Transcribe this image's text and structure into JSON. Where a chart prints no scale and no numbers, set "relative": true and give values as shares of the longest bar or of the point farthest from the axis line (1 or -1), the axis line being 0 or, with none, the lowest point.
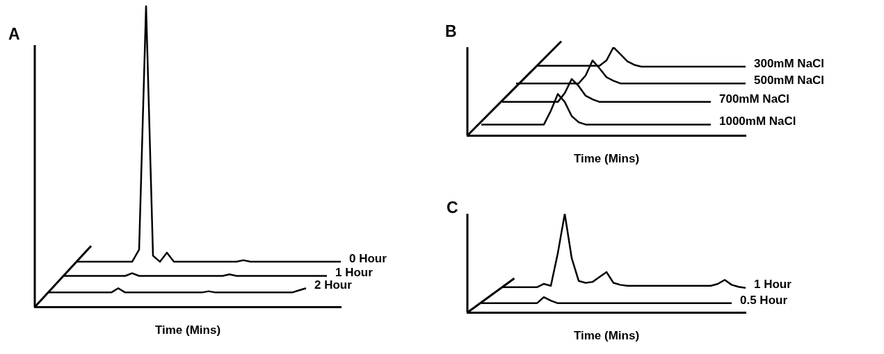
{
  "chart_data": [
    {
      "type": "line",
      "title": "A",
      "xlabel": "Time (Mins)",
      "relative": true,
      "marker": "none",
      "categories": [
        null,
        null,
        null,
        null,
        null,
        null,
        null,
        null,
        null,
        null,
        null,
        null,
        null,
        null,
        null,
        null,
        null,
        null,
        null,
        null,
        null,
        null,
        null,
        null,
        null,
        null,
        null,
        null,
        null,
        null,
        null,
        null,
        null,
        null,
        null,
        null,
        null,
        null,
        null,
        null,
        null,
        null,
        null,
        null,
        null
      ],
      "series": [
        {
          "name": "0 Hour",
          "color": "#000000",
          "values": [
            null,
            null,
            null,
            null,
            null,
            null,
            0.15,
            0.15,
            0.15,
            0.15,
            0.15,
            0.15,
            0.15,
            0.15,
            0.15,
            0.19,
            1,
            0.17,
            0.15,
            0.18,
            0.15,
            0.15,
            0.15,
            0.15,
            0.15,
            0.15,
            0.15,
            0.15,
            0.15,
            0.15,
            0.155,
            0.15,
            0.15,
            0.15,
            0.15,
            0.15,
            0.15,
            0.15,
            0.15,
            0.15,
            0.15,
            0.15,
            0.15,
            0.15,
            0.15
          ]
        },
        {
          "name": "1 Hour",
          "color": "#000000",
          "values": [
            null,
            null,
            null,
            null,
            0.103,
            0.103,
            0.103,
            0.103,
            0.103,
            0.103,
            0.103,
            0.103,
            0.103,
            0.103,
            0.112,
            0.103,
            0.103,
            0.103,
            0.103,
            0.103,
            0.103,
            0.103,
            0.103,
            0.103,
            0.103,
            0.103,
            0.103,
            0.103,
            0.108,
            0.103,
            0.103,
            0.103,
            0.103,
            0.103,
            0.103,
            0.103,
            0.103,
            0.103,
            0.103,
            0.103,
            0.103,
            0.103,
            0.103,
            null,
            null
          ]
        },
        {
          "name": "2 Hour",
          "color": "#000000",
          "values": [
            null,
            null,
            0.048,
            0.048,
            0.048,
            0.048,
            0.048,
            0.048,
            0.048,
            0.048,
            0.048,
            0.048,
            0.062,
            0.048,
            0.048,
            0.048,
            0.048,
            0.048,
            0.048,
            0.048,
            0.048,
            0.048,
            0.048,
            0.048,
            0.048,
            0.052,
            0.048,
            0.048,
            0.048,
            0.048,
            0.048,
            0.048,
            0.048,
            0.048,
            0.048,
            0.048,
            0.048,
            0.048,
            0.055,
            0.062,
            null,
            null,
            null,
            null,
            null
          ]
        }
      ]
    },
    {
      "type": "line",
      "title": "B",
      "xlabel": "Time (Mins)",
      "relative": true,
      "marker": "none",
      "categories": [
        null,
        null,
        null,
        null,
        null,
        null,
        null,
        null,
        null,
        null,
        null,
        null,
        null,
        null,
        null,
        null,
        null,
        null,
        null,
        null,
        null,
        null,
        null,
        null,
        null,
        null,
        null,
        null,
        null,
        null,
        null,
        null,
        null,
        null,
        null,
        null,
        null,
        null,
        null,
        null,
        null
      ],
      "series": [
        {
          "name": "300mM NaCl",
          "color": "#000000",
          "values": [
            null,
            null,
            null,
            null,
            null,
            null,
            null,
            null,
            null,
            null,
            0.79,
            0.79,
            0.79,
            0.79,
            0.79,
            0.79,
            0.79,
            0.79,
            0.79,
            0.79,
            0.85,
            1,
            0.92,
            0.84,
            0.8,
            0.78,
            0.78,
            0.78,
            0.78,
            0.78,
            0.78,
            0.78,
            0.78,
            0.78,
            0.78,
            0.78,
            0.78,
            0.78,
            0.78,
            0.78,
            0.78
          ]
        },
        {
          "name": "500mM NaCl",
          "color": "#000000",
          "values": [
            null,
            null,
            null,
            null,
            null,
            null,
            null,
            0.59,
            0.59,
            0.59,
            0.59,
            0.59,
            0.59,
            0.59,
            0.59,
            0.59,
            0.59,
            0.68,
            0.85,
            0.76,
            0.66,
            0.62,
            0.59,
            0.59,
            0.59,
            0.59,
            0.59,
            0.59,
            0.59,
            0.59,
            0.59,
            0.59,
            0.59,
            0.59,
            0.59,
            0.59,
            0.59,
            0.59,
            0.59,
            0.59,
            0.59
          ]
        },
        {
          "name": "700mM NaCl",
          "color": "#000000",
          "values": [
            null,
            null,
            null,
            null,
            null,
            0.38,
            0.38,
            0.38,
            0.38,
            0.38,
            0.38,
            0.38,
            0.38,
            0.38,
            0.48,
            0.64,
            0.56,
            0.45,
            0.41,
            0.38,
            0.38,
            0.38,
            0.38,
            0.38,
            0.38,
            0.38,
            0.38,
            0.38,
            0.38,
            0.38,
            0.38,
            0.38,
            0.38,
            0.38,
            0.38,
            0.38,
            null,
            null,
            null,
            null,
            null
          ]
        },
        {
          "name": "1000mM NaCl",
          "color": "#000000",
          "values": [
            null,
            null,
            0.124,
            0.124,
            0.124,
            0.124,
            0.124,
            0.124,
            0.124,
            0.124,
            0.124,
            0.124,
            0.28,
            0.47,
            0.38,
            0.22,
            0.15,
            0.124,
            0.124,
            0.124,
            0.124,
            0.124,
            0.124,
            0.124,
            0.124,
            0.124,
            0.124,
            0.124,
            0.124,
            0.124,
            0.124,
            0.124,
            0.124,
            0.124,
            0.124,
            0.124,
            null,
            null,
            null,
            null,
            null
          ]
        }
      ]
    },
    {
      "type": "line",
      "title": "C",
      "xlabel": "Time (Mins)",
      "relative": true,
      "marker": "none",
      "categories": [
        null,
        null,
        null,
        null,
        null,
        null,
        null,
        null,
        null,
        null,
        null,
        null,
        null,
        null,
        null,
        null,
        null,
        null,
        null,
        null,
        null,
        null,
        null,
        null,
        null,
        null,
        null,
        null,
        null,
        null,
        null,
        null,
        null,
        null,
        null,
        null,
        null,
        null,
        null,
        null,
        null
      ],
      "series": [
        {
          "name": "1 Hour",
          "color": "#000000",
          "values": [
            null,
            null,
            null,
            null,
            null,
            0.256,
            0.256,
            0.256,
            0.256,
            0.256,
            0.256,
            0.29,
            0.27,
            0.6,
            1,
            0.55,
            0.32,
            0.3,
            0.31,
            0.36,
            0.41,
            0.3,
            0.28,
            0.27,
            0.27,
            0.27,
            0.27,
            0.27,
            0.27,
            0.27,
            0.27,
            0.27,
            0.27,
            0.27,
            0.27,
            0.27,
            0.29,
            0.33,
            0.28,
            0.26,
            0.25
          ]
        },
        {
          "name": "0.5 Hour",
          "color": "#000000",
          "values": [
            null,
            null,
            0.094,
            0.094,
            0.094,
            0.094,
            0.094,
            0.094,
            0.094,
            0.094,
            0.094,
            0.156,
            0.12,
            0.094,
            0.094,
            0.094,
            0.094,
            0.094,
            0.094,
            0.094,
            0.094,
            0.094,
            0.094,
            0.094,
            0.094,
            0.094,
            0.094,
            0.094,
            0.094,
            0.094,
            0.094,
            0.094,
            0.094,
            0.094,
            0.094,
            0.094,
            0.094,
            0.094,
            0.094,
            null,
            null
          ]
        }
      ]
    }
  ]
}
